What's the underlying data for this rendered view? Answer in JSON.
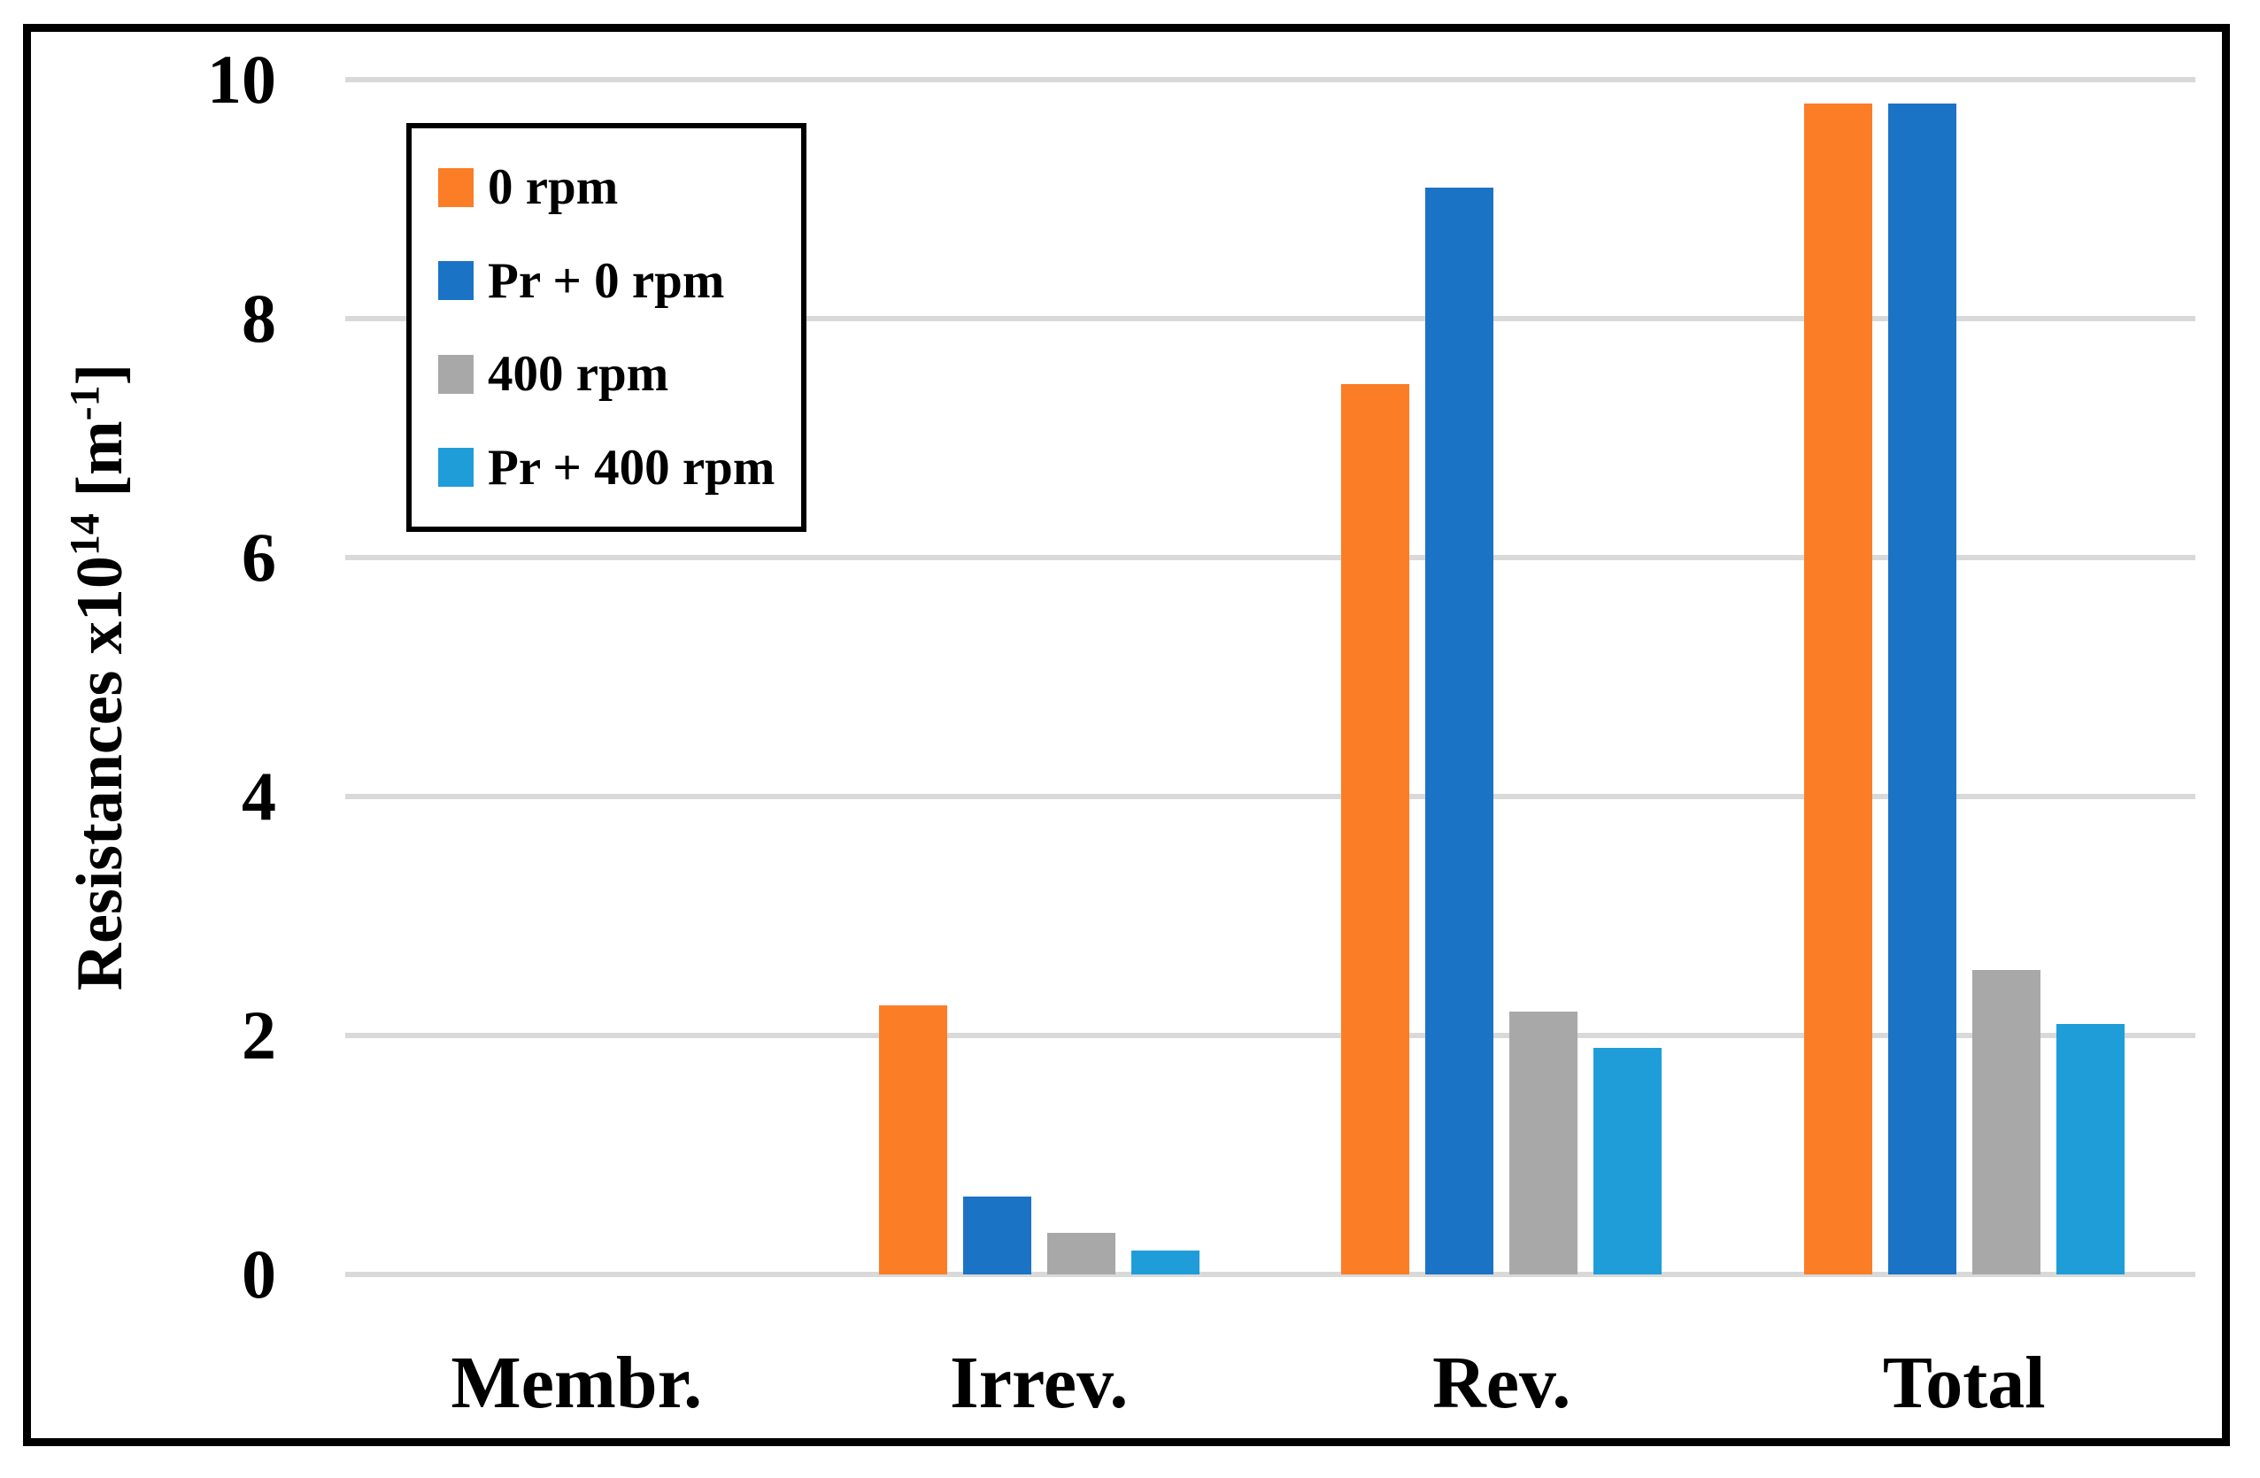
{
  "chart_data": {
    "type": "bar",
    "title": "",
    "xlabel": "",
    "ylabel": "Resistances x10^14 [m^-1]",
    "ylabel_parts": {
      "base1": "Resistances x10",
      "sup1": "14",
      "base2": " [m",
      "sup2": "-1",
      "base3": "]"
    },
    "categories": [
      "Membr.",
      "Irrev.",
      "Rev.",
      "Total"
    ],
    "series": [
      {
        "name": "0 rpm",
        "color": "#FB7D26",
        "values": [
          0,
          2.25,
          7.45,
          9.8
        ]
      },
      {
        "name": "Pr + 0 rpm",
        "color": "#1B73C5",
        "values": [
          0,
          0.65,
          9.1,
          9.8
        ]
      },
      {
        "name": "400 rpm",
        "color": "#A8A8A8",
        "values": [
          0,
          0.35,
          2.2,
          2.55
        ]
      },
      {
        "name": "Pr + 400 rpm",
        "color": "#1F9DD9",
        "values": [
          0,
          0.2,
          1.9,
          2.1
        ]
      }
    ],
    "ylim": [
      0,
      10
    ],
    "yticks": [
      0,
      2,
      4,
      6,
      8,
      10
    ],
    "grid": "horizontal",
    "gridline_color": "#D9D9D9",
    "legend_position": "upper-left-inside",
    "frame_color": "#000000",
    "background": "#FFFFFF"
  }
}
